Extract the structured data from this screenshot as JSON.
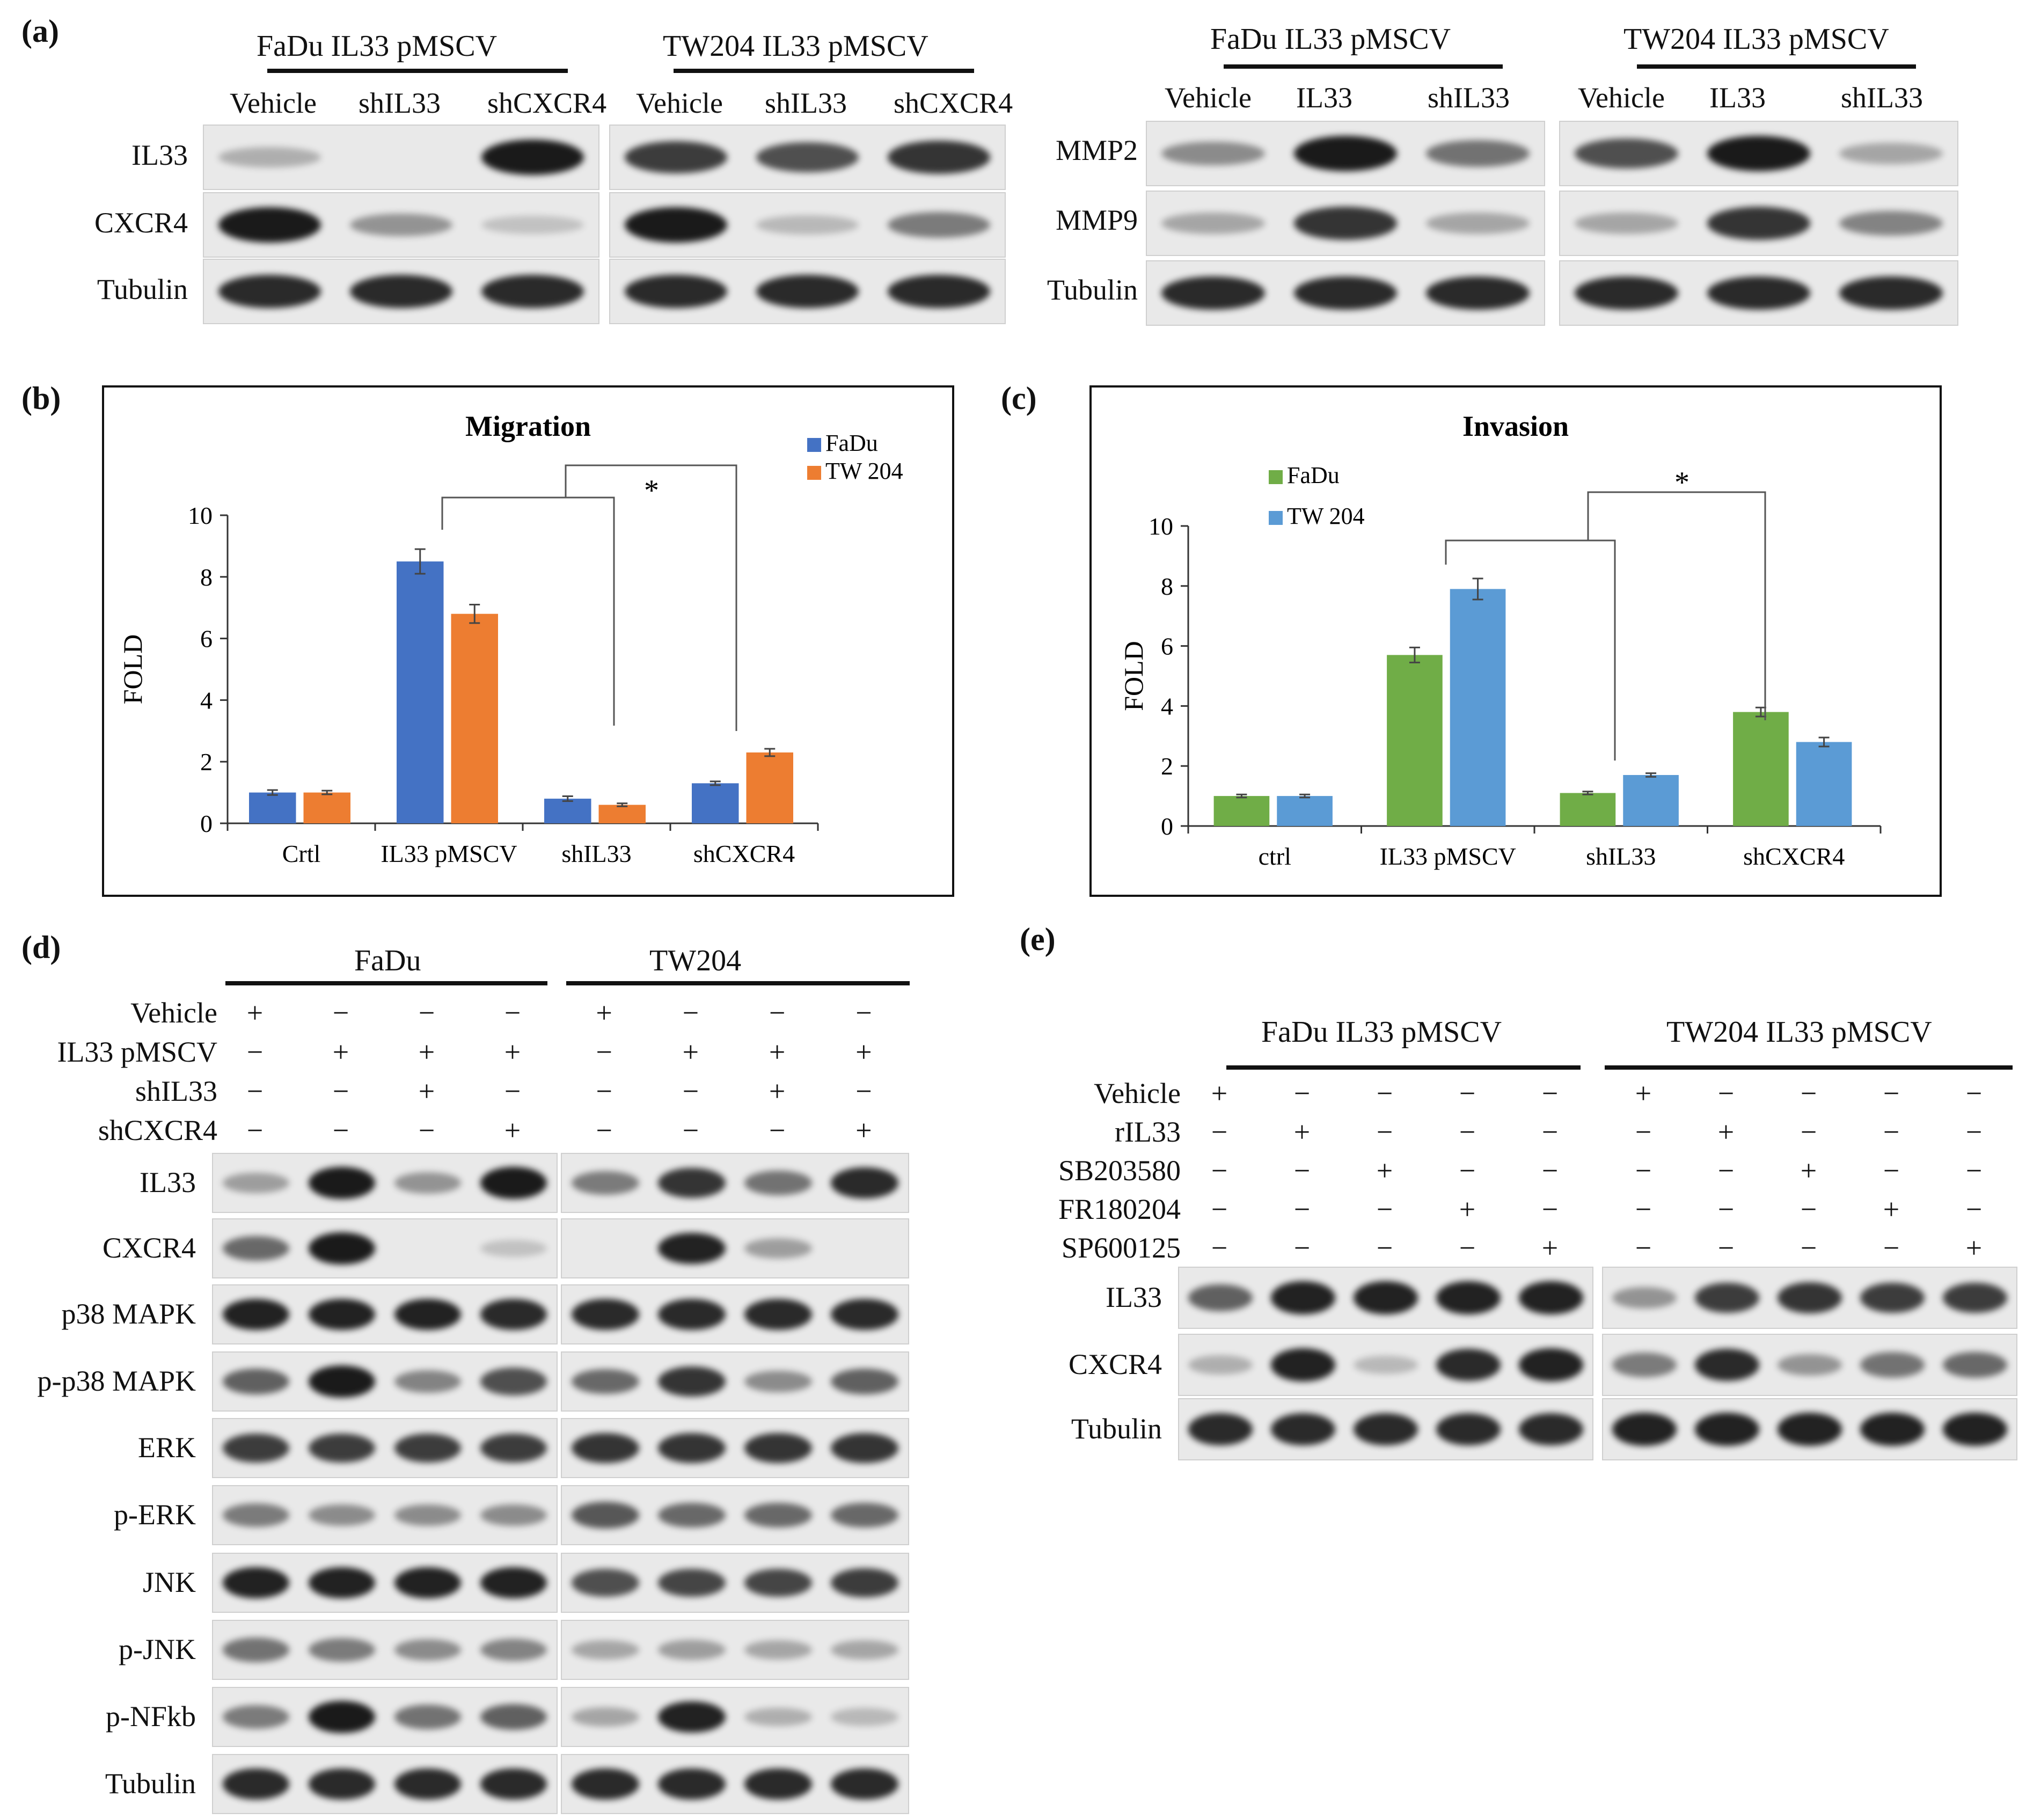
{
  "panels": {
    "a": "(a)",
    "b": "(b)",
    "c": "(c)",
    "d": "(d)",
    "e": "(e)"
  },
  "panel_a": {
    "left": {
      "groups": [
        {
          "title": "FaDu IL33 pMSCV",
          "lanes": [
            "Vehicle",
            "shIL33",
            "shCXCR4"
          ]
        },
        {
          "title": "TW204 IL33 pMSCV",
          "lanes": [
            "Vehicle",
            "shIL33",
            "shCXCR4"
          ]
        }
      ],
      "proteins": [
        "IL33",
        "CXCR4",
        "Tubulin"
      ],
      "intensity": {
        "IL33": [
          [
            0.15,
            0.0,
            1.0
          ],
          [
            0.8,
            0.7,
            0.85
          ]
        ],
        "CXCR4": [
          [
            1.0,
            0.3,
            0.05
          ],
          [
            1.0,
            0.1,
            0.45
          ]
        ],
        "Tubulin": [
          [
            0.9,
            0.9,
            0.9
          ],
          [
            0.9,
            0.9,
            0.9
          ]
        ]
      }
    },
    "right": {
      "groups": [
        {
          "title": "FaDu IL33 pMSCV",
          "lanes": [
            "Vehicle",
            "IL33",
            "shIL33"
          ]
        },
        {
          "title": "TW204 IL33 pMSCV",
          "lanes": [
            "Vehicle",
            "IL33",
            "shIL33"
          ]
        }
      ],
      "proteins": [
        "MMP2",
        "MMP9",
        "Tubulin"
      ],
      "intensity": {
        "MMP2": [
          [
            0.35,
            1.0,
            0.5
          ],
          [
            0.7,
            1.0,
            0.2
          ]
        ],
        "MMP9": [
          [
            0.2,
            0.85,
            0.2
          ],
          [
            0.2,
            0.85,
            0.4
          ]
        ],
        "Tubulin": [
          [
            0.9,
            0.9,
            0.9
          ],
          [
            0.9,
            0.9,
            0.9
          ]
        ]
      }
    }
  },
  "chart_data": [
    {
      "type": "bar",
      "title": "Migration",
      "ylabel": "FOLD",
      "categories": [
        "Crtl",
        "IL33 pMSCV",
        "shIL33",
        "shCXCR4"
      ],
      "series": [
        {
          "name": "FaDu",
          "values": [
            1.0,
            8.5,
            0.8,
            1.3
          ],
          "errors": [
            0.08,
            0.4,
            0.08,
            0.06
          ],
          "color": "#4472c4"
        },
        {
          "name": "TW 204",
          "values": [
            1.0,
            6.8,
            0.6,
            2.3
          ],
          "errors": [
            0.06,
            0.3,
            0.05,
            0.12
          ],
          "color": "#ed7d31"
        }
      ],
      "ylim": [
        0,
        10
      ],
      "yticks": [
        0,
        2,
        4,
        6,
        8,
        10
      ],
      "legend": "top-right",
      "annotation": "*"
    },
    {
      "type": "bar",
      "title": "Invasion",
      "ylabel": "FOLD",
      "categories": [
        "ctrl",
        "IL33 pMSCV",
        "shIL33",
        "shCXCR4"
      ],
      "series": [
        {
          "name": "FaDu",
          "values": [
            1.0,
            5.7,
            1.1,
            3.8
          ],
          "errors": [
            0.05,
            0.25,
            0.05,
            0.15
          ],
          "color": "#70ad47"
        },
        {
          "name": "TW 204",
          "values": [
            1.0,
            7.9,
            1.7,
            2.8
          ],
          "errors": [
            0.05,
            0.35,
            0.06,
            0.15
          ],
          "color": "#5b9bd5"
        }
      ],
      "ylim": [
        0,
        10
      ],
      "yticks": [
        0,
        2,
        4,
        6,
        8,
        10
      ],
      "legend": "top-left",
      "annotation": "*"
    }
  ],
  "panel_d": {
    "groups": [
      "FaDu",
      "TW204"
    ],
    "conditions": [
      "Vehicle",
      "IL33 pMSCV",
      "shIL33",
      "shCXCR4"
    ],
    "signs": [
      [
        "+",
        "−",
        "−",
        "−",
        "+",
        "−",
        "−",
        "−"
      ],
      [
        "−",
        "+",
        "+",
        "+",
        "−",
        "+",
        "+",
        "+"
      ],
      [
        "−",
        "−",
        "+",
        "−",
        "−",
        "−",
        "+",
        "−"
      ],
      [
        "−",
        "−",
        "−",
        "+",
        "−",
        "−",
        "−",
        "+"
      ]
    ],
    "proteins": [
      "IL33",
      "CXCR4",
      "p38 MAPK",
      "p-p38 MAPK",
      "ERK",
      "p-ERK",
      "JNK",
      "p-JNK",
      "p-NFkb",
      "Tubulin"
    ],
    "intensity": {
      "IL33": [
        0.25,
        1.0,
        0.3,
        1.0,
        0.45,
        0.85,
        0.5,
        0.9
      ],
      "CXCR4": [
        0.55,
        1.0,
        0.0,
        0.05,
        0.0,
        0.95,
        0.25,
        0.0
      ],
      "p38 MAPK": [
        0.95,
        0.95,
        0.95,
        0.9,
        0.9,
        0.9,
        0.9,
        0.9
      ],
      "p-p38 MAPK": [
        0.6,
        1.0,
        0.4,
        0.7,
        0.55,
        0.85,
        0.35,
        0.6
      ],
      "ERK": [
        0.8,
        0.8,
        0.8,
        0.8,
        0.85,
        0.85,
        0.85,
        0.85
      ],
      "p-ERK": [
        0.45,
        0.35,
        0.35,
        0.35,
        0.65,
        0.55,
        0.55,
        0.55
      ],
      "JNK": [
        0.95,
        0.95,
        0.95,
        0.95,
        0.7,
        0.75,
        0.75,
        0.8
      ],
      "p-JNK": [
        0.5,
        0.45,
        0.35,
        0.4,
        0.2,
        0.25,
        0.2,
        0.2
      ],
      "p-NFkb": [
        0.45,
        1.0,
        0.5,
        0.6,
        0.2,
        0.95,
        0.15,
        0.1
      ],
      "Tubulin": [
        0.9,
        0.9,
        0.9,
        0.9,
        0.9,
        0.9,
        0.9,
        0.9
      ]
    }
  },
  "panel_e": {
    "groups": [
      "FaDu IL33 pMSCV",
      "TW204 IL33 pMSCV"
    ],
    "conditions": [
      "Vehicle",
      "rIL33",
      "SB203580",
      "FR180204",
      "SP600125"
    ],
    "signs": [
      [
        "+",
        "−",
        "−",
        "−",
        "−",
        "+",
        "−",
        "−",
        "−",
        "−"
      ],
      [
        "−",
        "+",
        "−",
        "−",
        "−",
        "−",
        "+",
        "−",
        "−",
        "−"
      ],
      [
        "−",
        "−",
        "+",
        "−",
        "−",
        "−",
        "−",
        "+",
        "−",
        "−"
      ],
      [
        "−",
        "−",
        "−",
        "+",
        "−",
        "−",
        "−",
        "−",
        "+",
        "−"
      ],
      [
        "−",
        "−",
        "−",
        "−",
        "+",
        "−",
        "−",
        "−",
        "−",
        "+"
      ]
    ],
    "proteins": [
      "IL33",
      "CXCR4",
      "Tubulin"
    ],
    "intensity": {
      "IL33": [
        0.6,
        0.95,
        0.95,
        0.95,
        0.95,
        0.3,
        0.8,
        0.85,
        0.8,
        0.8
      ],
      "CXCR4": [
        0.15,
        0.95,
        0.1,
        0.9,
        0.95,
        0.45,
        0.9,
        0.3,
        0.5,
        0.55
      ],
      "Tubulin": [
        0.9,
        0.9,
        0.9,
        0.9,
        0.9,
        0.95,
        0.95,
        0.95,
        0.95,
        0.95
      ]
    }
  }
}
